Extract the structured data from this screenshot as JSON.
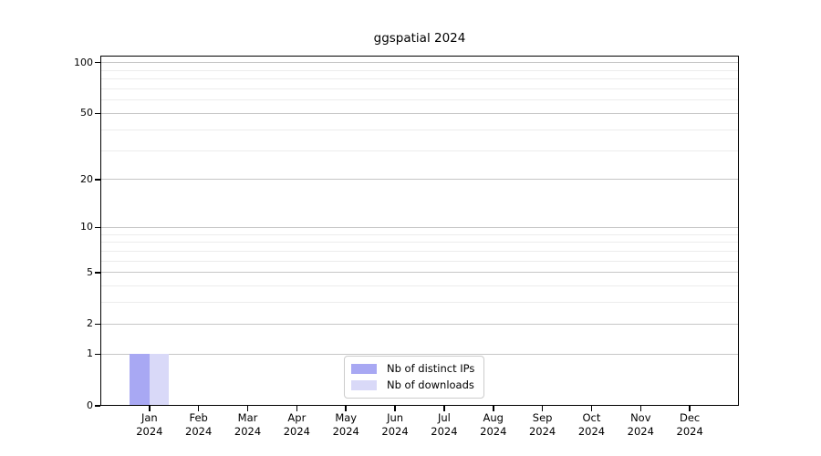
{
  "title": "ggspatial 2024",
  "chart_data": {
    "type": "bar",
    "title": "ggspatial 2024",
    "categories": [
      "Jan",
      "Feb",
      "Mar",
      "Apr",
      "May",
      "Jun",
      "Jul",
      "Aug",
      "Sep",
      "Oct",
      "Nov",
      "Dec"
    ],
    "category_year": "2024",
    "series": [
      {
        "name": "Nb of distinct IPs",
        "color": "#a8a8f3",
        "values": [
          1,
          0,
          0,
          0,
          0,
          0,
          0,
          0,
          0,
          0,
          0,
          0
        ]
      },
      {
        "name": "Nb of downloads",
        "color": "#d9d9f8",
        "values": [
          1,
          0,
          0,
          0,
          0,
          0,
          0,
          0,
          0,
          0,
          0,
          0
        ]
      }
    ],
    "xlabel": "",
    "ylabel": "",
    "yscale": "log1p",
    "ylim": [
      0,
      110
    ],
    "yticks": [
      0,
      1,
      2,
      5,
      10,
      20,
      50,
      100
    ],
    "yticks_minor": [
      3,
      4,
      6,
      7,
      8,
      9,
      30,
      40,
      60,
      70,
      80,
      90
    ],
    "grid": "horizontal major+minor",
    "legend_position": "bottom-center"
  },
  "colors": {
    "bar_distinct_ips": "#a8a8f3",
    "bar_downloads": "#d9d9f8",
    "grid_major": "#c6c6c6",
    "grid_minor": "#ececec",
    "axis": "#000000",
    "legend_border": "#cccccc",
    "background": "#ffffff",
    "text": "#000000"
  }
}
